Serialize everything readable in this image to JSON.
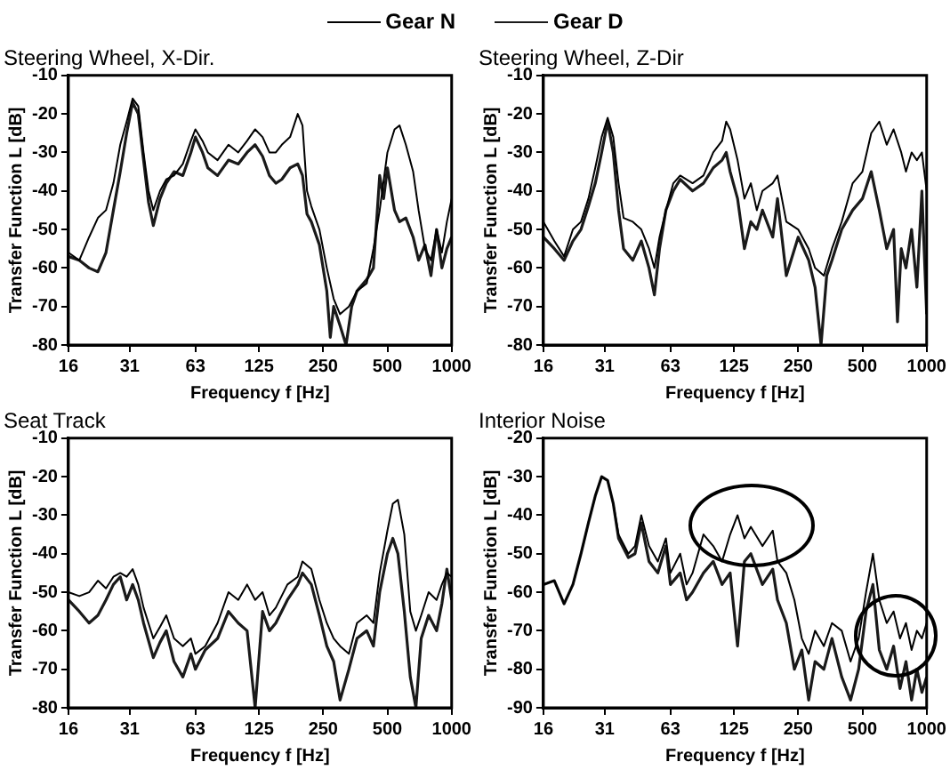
{
  "chart_data": [
    {
      "type": "line",
      "title": "Steering Wheel, X-Dir.",
      "xlabel": "Frequency f [Hz]",
      "ylabel": "Transfer Function L [dB]",
      "log": "x",
      "grid": false,
      "legend": "top",
      "xlim": [
        16,
        1000
      ],
      "xticks": [
        16,
        31,
        63,
        125,
        250,
        500,
        1000
      ],
      "ylim": [
        -80,
        -10
      ],
      "yticks": [
        -80,
        -70,
        -60,
        -50,
        -40,
        -30,
        -20,
        -10
      ],
      "series": [
        {
          "name": "Gear N",
          "color": "#000000",
          "x": [
            16,
            18,
            20,
            22,
            24,
            26,
            28,
            30,
            32,
            34,
            36,
            38,
            40,
            43,
            46,
            50,
            55,
            60,
            63,
            68,
            72,
            80,
            90,
            100,
            110,
            120,
            130,
            140,
            150,
            160,
            175,
            190,
            200,
            210,
            220,
            240,
            260,
            280,
            300,
            330,
            360,
            400,
            430,
            460,
            500,
            540,
            570,
            610,
            660,
            700,
            750,
            800,
            850,
            900,
            950,
            1000
          ],
          "values": [
            -56,
            -58,
            -52,
            -47,
            -45,
            -38,
            -28,
            -22,
            -16,
            -18,
            -30,
            -40,
            -45,
            -40,
            -37,
            -36,
            -33,
            -27,
            -24,
            -27,
            -30,
            -32,
            -28,
            -30,
            -27,
            -24,
            -26,
            -30,
            -30,
            -28,
            -26,
            -20,
            -23,
            -40,
            -44,
            -50,
            -60,
            -68,
            -72,
            -70,
            -66,
            -64,
            -55,
            -45,
            -30,
            -24,
            -23,
            -28,
            -35,
            -45,
            -55,
            -58,
            -50,
            -56,
            -48,
            -42
          ]
        },
        {
          "name": "Gear D",
          "color": "#1a1a1a",
          "x": [
            16,
            18,
            20,
            22,
            24,
            26,
            28,
            30,
            32,
            34,
            36,
            38,
            40,
            43,
            46,
            50,
            55,
            60,
            63,
            68,
            72,
            80,
            90,
            100,
            110,
            120,
            130,
            140,
            150,
            160,
            175,
            190,
            200,
            210,
            220,
            240,
            260,
            270,
            280,
            300,
            320,
            340,
            360,
            400,
            430,
            460,
            480,
            500,
            540,
            570,
            610,
            660,
            700,
            750,
            800,
            850,
            900,
            950,
            1000
          ],
          "values": [
            -57,
            -58,
            -60,
            -61,
            -56,
            -45,
            -35,
            -25,
            -17,
            -20,
            -32,
            -43,
            -49,
            -42,
            -38,
            -35,
            -36,
            -30,
            -26,
            -30,
            -34,
            -36,
            -32,
            -33,
            -30,
            -28,
            -31,
            -36,
            -38,
            -37,
            -34,
            -33,
            -36,
            -46,
            -48,
            -54,
            -66,
            -78,
            -70,
            -75,
            -80,
            -70,
            -66,
            -63,
            -60,
            -36,
            -42,
            -34,
            -45,
            -48,
            -47,
            -52,
            -58,
            -54,
            -62,
            -50,
            -60,
            -55,
            -52
          ]
        }
      ]
    },
    {
      "type": "line",
      "title": "Steering Wheel, Z-Dir",
      "xlabel": "Frequency f [Hz]",
      "ylabel": "Transfer Function L [dB]",
      "log": "x",
      "grid": false,
      "xlim": [
        16,
        1000
      ],
      "xticks": [
        16,
        31,
        63,
        125,
        250,
        500,
        1000
      ],
      "ylim": [
        -80,
        -10
      ],
      "yticks": [
        -80,
        -70,
        -60,
        -50,
        -40,
        -30,
        -20,
        -10
      ],
      "series": [
        {
          "color": "#000000",
          "x": [
            16,
            18,
            20,
            22,
            24,
            26,
            28,
            30,
            32,
            34,
            36,
            38,
            42,
            46,
            50,
            53,
            56,
            60,
            65,
            70,
            80,
            90,
            100,
            110,
            115,
            120,
            130,
            140,
            150,
            160,
            170,
            190,
            200,
            220,
            250,
            280,
            300,
            330,
            360,
            400,
            450,
            500,
            550,
            600,
            650,
            700,
            760,
            800,
            850,
            900,
            950,
            1000
          ],
          "values": [
            -48,
            -53,
            -57,
            -50,
            -48,
            -42,
            -34,
            -26,
            -21,
            -26,
            -38,
            -47,
            -48,
            -50,
            -55,
            -60,
            -52,
            -45,
            -38,
            -36,
            -38,
            -36,
            -30,
            -27,
            -22,
            -24,
            -32,
            -42,
            -38,
            -45,
            -40,
            -38,
            -36,
            -48,
            -50,
            -55,
            -60,
            -62,
            -55,
            -48,
            -38,
            -35,
            -25,
            -22,
            -28,
            -24,
            -30,
            -35,
            -30,
            -32,
            -30,
            -40
          ]
        },
        {
          "color": "#1a1a1a",
          "x": [
            16,
            18,
            20,
            22,
            24,
            26,
            28,
            30,
            32,
            34,
            36,
            38,
            42,
            46,
            50,
            53,
            56,
            60,
            65,
            70,
            80,
            90,
            100,
            110,
            115,
            120,
            130,
            140,
            150,
            160,
            170,
            190,
            200,
            220,
            250,
            280,
            300,
            320,
            340,
            360,
            400,
            450,
            500,
            550,
            600,
            650,
            700,
            730,
            760,
            800,
            850,
            900,
            950,
            1000
          ],
          "values": [
            -52,
            -55,
            -58,
            -53,
            -50,
            -44,
            -38,
            -30,
            -22,
            -30,
            -45,
            -55,
            -58,
            -53,
            -60,
            -67,
            -55,
            -45,
            -40,
            -37,
            -40,
            -38,
            -34,
            -32,
            -30,
            -35,
            -42,
            -55,
            -48,
            -50,
            -45,
            -52,
            -42,
            -62,
            -52,
            -58,
            -65,
            -80,
            -62,
            -58,
            -50,
            -45,
            -42,
            -35,
            -45,
            -55,
            -50,
            -74,
            -55,
            -60,
            -50,
            -65,
            -40,
            -72
          ]
        }
      ]
    },
    {
      "type": "line",
      "title": "Seat Track",
      "xlabel": "Frequency f [Hz]",
      "ylabel": "Transfer Function L [dB]",
      "log": "x",
      "grid": false,
      "xlim": [
        16,
        1000
      ],
      "xticks": [
        16,
        31,
        63,
        125,
        250,
        500,
        1000
      ],
      "ylim": [
        -80,
        -10
      ],
      "yticks": [
        -80,
        -70,
        -60,
        -50,
        -40,
        -30,
        -20,
        -10
      ],
      "series": [
        {
          "color": "#000000",
          "x": [
            16,
            18,
            20,
            22,
            24,
            26,
            28,
            30,
            32,
            34,
            36,
            40,
            43,
            46,
            50,
            55,
            60,
            63,
            70,
            80,
            90,
            100,
            110,
            120,
            130,
            140,
            150,
            170,
            190,
            200,
            220,
            240,
            260,
            280,
            300,
            330,
            360,
            400,
            430,
            460,
            500,
            530,
            560,
            600,
            640,
            680,
            720,
            780,
            850,
            900,
            950,
            1000
          ],
          "values": [
            -50,
            -51,
            -50,
            -47,
            -49,
            -46,
            -45,
            -46,
            -44,
            -48,
            -54,
            -62,
            -59,
            -56,
            -62,
            -64,
            -62,
            -66,
            -64,
            -58,
            -50,
            -52,
            -48,
            -52,
            -50,
            -56,
            -54,
            -48,
            -46,
            -42,
            -44,
            -52,
            -58,
            -62,
            -64,
            -66,
            -58,
            -56,
            -58,
            -45,
            -34,
            -27,
            -26,
            -35,
            -55,
            -60,
            -56,
            -50,
            -52,
            -48,
            -45,
            -46
          ]
        },
        {
          "color": "#1a1a1a",
          "x": [
            16,
            18,
            20,
            22,
            24,
            26,
            28,
            30,
            32,
            34,
            36,
            40,
            43,
            46,
            50,
            55,
            60,
            63,
            70,
            80,
            90,
            100,
            110,
            120,
            130,
            140,
            150,
            170,
            190,
            200,
            220,
            240,
            260,
            280,
            300,
            330,
            360,
            400,
            430,
            460,
            500,
            530,
            560,
            600,
            640,
            680,
            720,
            780,
            850,
            900,
            950,
            1000
          ],
          "values": [
            -52,
            -55,
            -58,
            -56,
            -52,
            -48,
            -46,
            -52,
            -48,
            -52,
            -58,
            -67,
            -63,
            -60,
            -68,
            -72,
            -66,
            -70,
            -65,
            -62,
            -55,
            -58,
            -60,
            -80,
            -55,
            -60,
            -58,
            -52,
            -48,
            -45,
            -48,
            -56,
            -64,
            -68,
            -78,
            -70,
            -62,
            -60,
            -64,
            -50,
            -40,
            -36,
            -40,
            -55,
            -72,
            -80,
            -62,
            -56,
            -60,
            -53,
            -44,
            -52
          ]
        }
      ]
    },
    {
      "type": "line",
      "title": "Interior Noise",
      "xlabel": "Frequency f [Hz]",
      "ylabel": "Transfer Function L [dB]",
      "log": "x",
      "grid": false,
      "xlim": [
        16,
        1000
      ],
      "xticks": [
        16,
        31,
        63,
        125,
        250,
        500,
        1000
      ],
      "ylim": [
        -90,
        -20
      ],
      "yticks": [
        -90,
        -80,
        -70,
        -60,
        -50,
        -40,
        -30,
        -20
      ],
      "series": [
        {
          "color": "#000000",
          "x": [
            16,
            18,
            20,
            22,
            24,
            26,
            28,
            30,
            32,
            34,
            36,
            40,
            43,
            46,
            50,
            55,
            60,
            63,
            70,
            75,
            80,
            90,
            100,
            110,
            120,
            130,
            140,
            150,
            170,
            190,
            200,
            220,
            240,
            260,
            280,
            300,
            330,
            360,
            400,
            440,
            480,
            520,
            560,
            600,
            650,
            700,
            750,
            800,
            850,
            900,
            950,
            1000
          ],
          "values": [
            -58,
            -57,
            -63,
            -58,
            -50,
            -42,
            -35,
            -30,
            -31,
            -37,
            -45,
            -50,
            -48,
            -40,
            -48,
            -52,
            -46,
            -55,
            -50,
            -58,
            -55,
            -45,
            -48,
            -52,
            -45,
            -40,
            -46,
            -43,
            -48,
            -44,
            -52,
            -55,
            -62,
            -72,
            -76,
            -70,
            -74,
            -68,
            -70,
            -78,
            -72,
            -60,
            -50,
            -62,
            -68,
            -65,
            -72,
            -68,
            -75,
            -70,
            -72,
            -68
          ]
        },
        {
          "color": "#1a1a1a",
          "x": [
            16,
            18,
            20,
            22,
            24,
            26,
            28,
            30,
            32,
            34,
            36,
            40,
            43,
            46,
            50,
            55,
            60,
            63,
            70,
            75,
            80,
            90,
            100,
            110,
            120,
            130,
            140,
            150,
            170,
            190,
            200,
            220,
            240,
            260,
            280,
            300,
            330,
            360,
            400,
            440,
            480,
            520,
            560,
            600,
            650,
            700,
            750,
            800,
            850,
            900,
            950,
            1000
          ],
          "values": [
            -58,
            -57,
            -63,
            -58,
            -50,
            -42,
            -35,
            -30,
            -31,
            -37,
            -46,
            -51,
            -50,
            -42,
            -52,
            -55,
            -48,
            -58,
            -55,
            -62,
            -60,
            -55,
            -52,
            -58,
            -55,
            -74,
            -52,
            -50,
            -58,
            -54,
            -62,
            -68,
            -80,
            -75,
            -88,
            -78,
            -80,
            -72,
            -82,
            -88,
            -80,
            -65,
            -58,
            -75,
            -80,
            -74,
            -85,
            -78,
            -88,
            -80,
            -86,
            -82
          ]
        }
      ]
    }
  ]
}
